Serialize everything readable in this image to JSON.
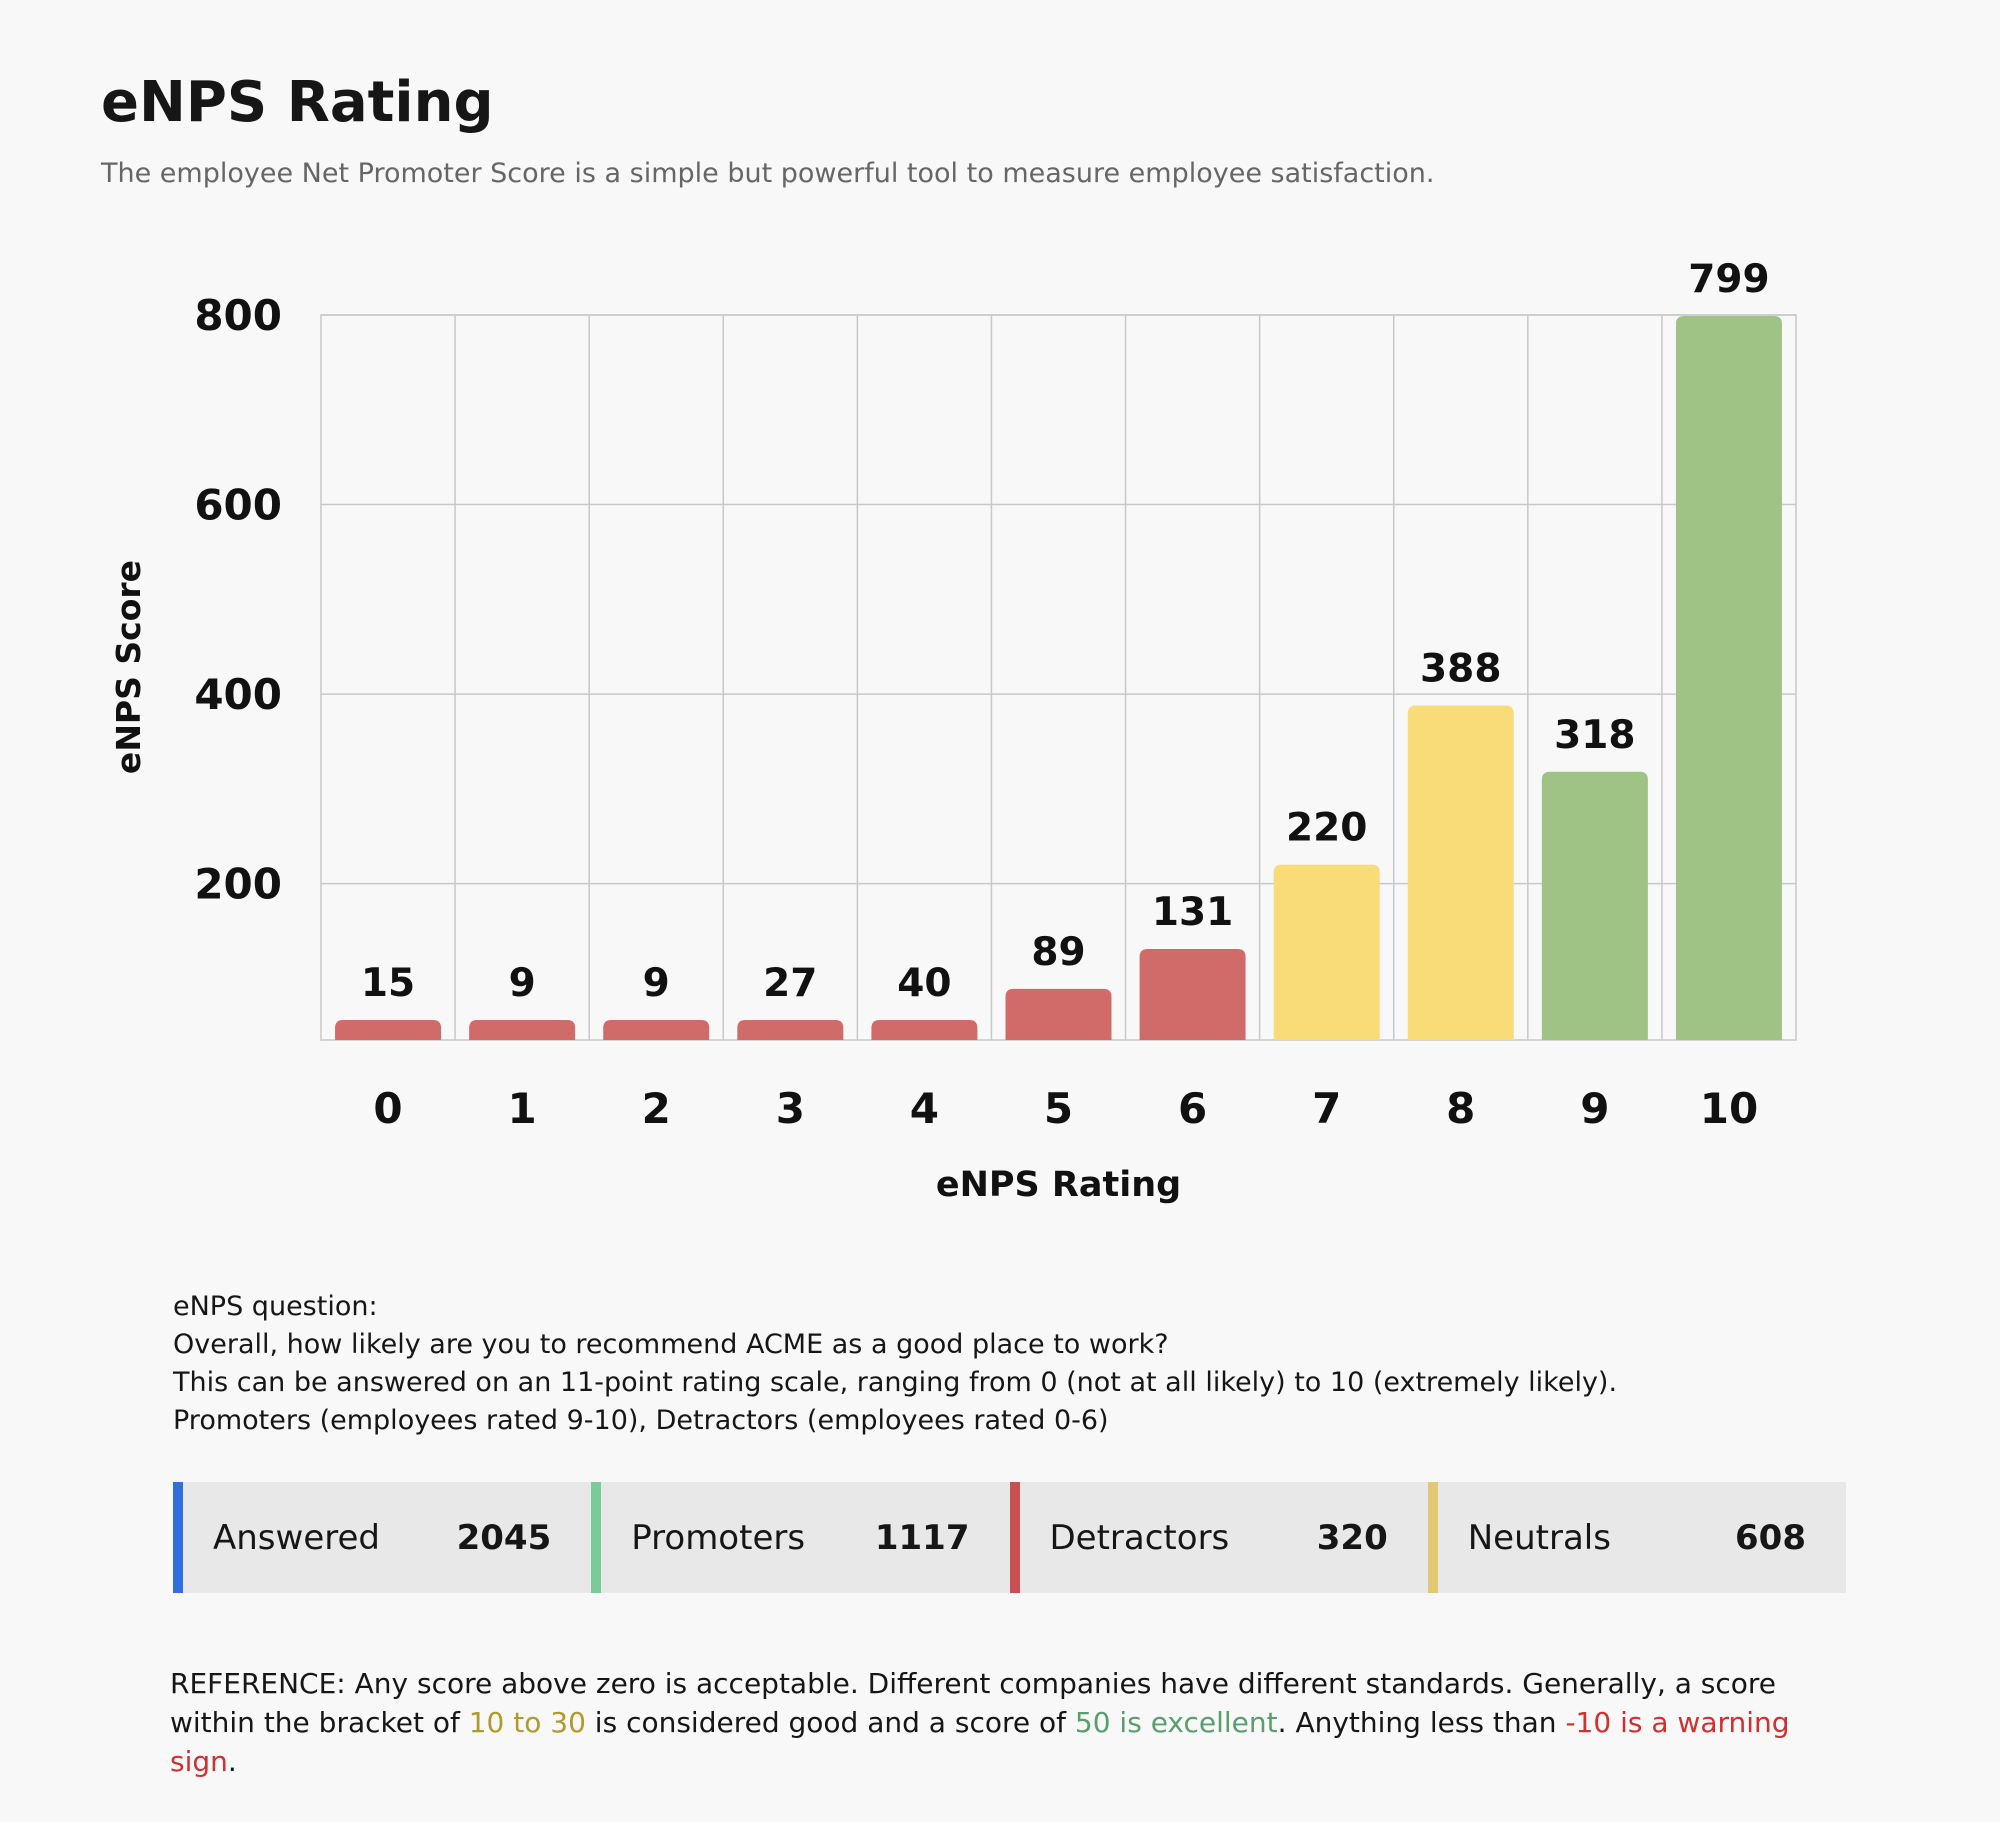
{
  "header": {
    "title": "eNPS Rating",
    "subtitle": "The employee Net Promoter Score is a simple but powerful tool to measure employee satisfaction."
  },
  "chart_data": {
    "type": "bar",
    "categories": [
      "0",
      "1",
      "2",
      "3",
      "4",
      "5",
      "6",
      "7",
      "8",
      "9",
      "10"
    ],
    "values": [
      15,
      9,
      9,
      27,
      40,
      89,
      131,
      220,
      388,
      318,
      799
    ],
    "colors": [
      "#d16b69",
      "#d16b69",
      "#d16b69",
      "#d16b69",
      "#d16b69",
      "#d16b69",
      "#d16b69",
      "#f9db78",
      "#f9db78",
      "#9fc384",
      "#9fc384"
    ],
    "xlabel": "eNPS Rating",
    "ylabel": "eNPS Score",
    "yticks": [
      200,
      400,
      600,
      800
    ],
    "ylim": [
      35,
      800
    ],
    "grid": true
  },
  "question": {
    "lines": [
      "eNPS question:",
      "Overall, how likely are you to recommend ACME as a good place to work?",
      "This can be answered on an 11-point rating scale, ranging from 0 (not at all likely) to 10 (extremely likely).",
      "Promoters (employees rated 9-10), Detractors (employees rated 0-6)"
    ]
  },
  "stats": [
    {
      "label": "Answered",
      "value": "2045",
      "color": "#2f6fe0"
    },
    {
      "label": "Promoters",
      "value": "1117",
      "color": "#79cc98"
    },
    {
      "label": "Detractors",
      "value": "320",
      "color": "#c85050"
    },
    {
      "label": "Neutrals",
      "value": "608",
      "color": "#e4c774"
    }
  ],
  "reference": {
    "p1": "REFERENCE: Any score above zero is acceptable. Different companies have different standards. Generally, a score within the bracket of ",
    "good": "10 to 30",
    "p2": " is considered good and a score of ",
    "excellent": "50 is excellent",
    "p3": ". Anything less than ",
    "warning": "-10 is a warning sign",
    "p4": ".",
    "good_color": "#b09a2a",
    "excellent_color": "#5a9e6e",
    "warning_color": "#d03030"
  }
}
